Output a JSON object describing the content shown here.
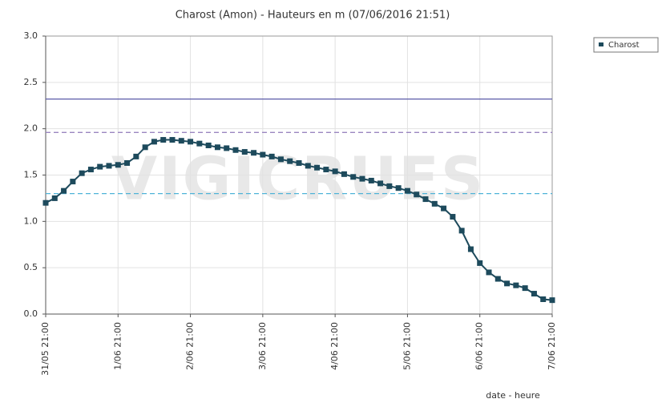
{
  "chart_data": {
    "type": "line",
    "title": "Charost (Amon) - Hauteurs en m (07/06/2016 21:51)",
    "watermark": "VIGICRUES",
    "xlabel": "date - heure",
    "x": [
      "31/05 21:00",
      "1/06 00:00",
      "1/06 03:00",
      "1/06 06:00",
      "1/06 09:00",
      "1/06 12:00",
      "1/06 15:00",
      "1/06 18:00",
      "1/06 21:00",
      "2/06 00:00",
      "2/06 03:00",
      "2/06 06:00",
      "2/06 09:00",
      "2/06 12:00",
      "2/06 15:00",
      "2/06 18:00",
      "2/06 21:00",
      "3/06 00:00",
      "3/06 03:00",
      "3/06 06:00",
      "3/06 09:00",
      "3/06 12:00",
      "3/06 15:00",
      "3/06 18:00",
      "3/06 21:00",
      "4/06 00:00",
      "4/06 03:00",
      "4/06 06:00",
      "4/06 09:00",
      "4/06 12:00",
      "4/06 15:00",
      "4/06 18:00",
      "4/06 21:00",
      "5/06 00:00",
      "5/06 03:00",
      "5/06 06:00",
      "5/06 09:00",
      "5/06 12:00",
      "5/06 15:00",
      "5/06 18:00",
      "5/06 21:00",
      "6/06 00:00",
      "6/06 03:00",
      "6/06 06:00",
      "6/06 09:00",
      "6/06 12:00",
      "6/06 15:00",
      "6/06 18:00",
      "6/06 21:00",
      "7/06 00:00",
      "7/06 03:00",
      "7/06 06:00",
      "7/06 09:00",
      "7/06 12:00",
      "7/06 15:00",
      "7/06 18:00",
      "7/06 21:00"
    ],
    "series": [
      {
        "name": "Charost",
        "color": "#1d4a5c",
        "values": [
          1.2,
          1.25,
          1.33,
          1.43,
          1.52,
          1.56,
          1.59,
          1.6,
          1.61,
          1.63,
          1.7,
          1.8,
          1.86,
          1.88,
          1.88,
          1.87,
          1.86,
          1.84,
          1.82,
          1.8,
          1.79,
          1.77,
          1.75,
          1.74,
          1.72,
          1.7,
          1.67,
          1.65,
          1.63,
          1.6,
          1.58,
          1.56,
          1.54,
          1.51,
          1.48,
          1.46,
          1.44,
          1.41,
          1.38,
          1.36,
          1.33,
          1.29,
          1.24,
          1.19,
          1.14,
          1.05,
          0.9,
          0.7,
          0.55,
          0.45,
          0.38,
          0.33,
          0.31,
          0.28,
          0.22,
          0.16,
          0.15
        ]
      }
    ],
    "reference_lines": [
      {
        "value": 2.32,
        "color": "#5a5aa8",
        "style": "solid"
      },
      {
        "value": 1.96,
        "color": "#9a86c0",
        "style": "dashed"
      },
      {
        "value": 1.3,
        "color": "#4fb3d8",
        "style": "dashed"
      }
    ],
    "xlim": [
      "31/05 21:00",
      "7/06 21:00"
    ],
    "xticks": [
      "31/05 21:00",
      "1/06 21:00",
      "2/06 21:00",
      "3/06 21:00",
      "4/06 21:00",
      "5/06 21:00",
      "6/06 21:00",
      "7/06 21:00"
    ],
    "ylim": [
      0,
      3
    ],
    "yticks": [
      {
        "value": 0,
        "label": "0.0"
      },
      {
        "value": 0.5,
        "label": "0.5"
      },
      {
        "value": 1,
        "label": "1.0"
      },
      {
        "value": 1.5,
        "label": "1.5"
      },
      {
        "value": 2,
        "label": "2.0"
      },
      {
        "value": 2.5,
        "label": "2.5"
      },
      {
        "value": 3,
        "label": "3.0"
      }
    ],
    "grid": true,
    "legend": "top-right"
  }
}
